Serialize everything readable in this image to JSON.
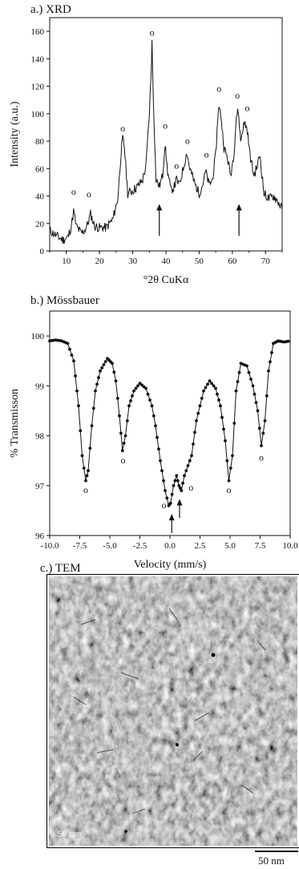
{
  "panels": {
    "xrd_label": "a.) XRD",
    "moss_label": "b.) Mössbauer",
    "tem_label": "c.) TEM"
  },
  "colors": {
    "line": "#111111",
    "background": "#ffffff"
  },
  "chart_data": [
    {
      "type": "line",
      "title": "a.) XRD",
      "xlabel": "°2θ CuKα",
      "ylabel": "Intensity (a.u.)",
      "xlim": [
        5,
        75
      ],
      "ylim": [
        0,
        170
      ],
      "xticks": [
        10,
        20,
        30,
        40,
        50,
        60,
        70
      ],
      "yticks": [
        0,
        20,
        40,
        60,
        80,
        100,
        120,
        140,
        160
      ],
      "grid": false,
      "series": [
        {
          "x": [
            5,
            7,
            9,
            10.5,
            11.5,
            12.2,
            13,
            14.5,
            15.5,
            16.5,
            17.3,
            18.5,
            20,
            22,
            24,
            25.5,
            26.5,
            27,
            27.5,
            28.5,
            30,
            31.5,
            33,
            34,
            35,
            35.5,
            35.8,
            36.2,
            37,
            38,
            39,
            39.7,
            40.5,
            41.5,
            42.5,
            43.2,
            44,
            45,
            46.3,
            47,
            48.5,
            50,
            51,
            52,
            53,
            54,
            55,
            55.8,
            56.5,
            57.5,
            58.5,
            59.5,
            60.5,
            61.2,
            61.8,
            62.5,
            63.2,
            63.8,
            64.5,
            65.3,
            66.5,
            67.5,
            68.3,
            69.5,
            71,
            72.5,
            74,
            75
          ],
          "y": [
            15,
            11,
            8,
            10,
            18,
            29,
            18,
            13,
            15,
            20,
            27,
            18,
            17,
            17,
            23,
            38,
            72,
            82,
            76,
            42,
            44,
            47,
            52,
            62,
            100,
            128,
            152,
            112,
            52,
            47,
            55,
            78,
            58,
            44,
            47,
            52,
            48,
            58,
            72,
            62,
            50,
            42,
            48,
            58,
            48,
            52,
            70,
            105,
            100,
            75,
            68,
            55,
            72,
            98,
            102,
            80,
            90,
            93,
            88,
            70,
            55,
            62,
            70,
            42,
            38,
            40,
            35,
            30
          ]
        }
      ],
      "annotations": [
        {
          "marker": "o",
          "x": 12.2,
          "y": 41
        },
        {
          "marker": "o",
          "x": 16.8,
          "y": 39
        },
        {
          "marker": "o",
          "x": 27,
          "y": 87
        },
        {
          "marker": "o",
          "x": 35.8,
          "y": 157
        },
        {
          "marker": "o",
          "x": 39.8,
          "y": 89
        },
        {
          "marker": "o",
          "x": 43.2,
          "y": 60
        },
        {
          "marker": "o",
          "x": 46.5,
          "y": 78
        },
        {
          "marker": "o",
          "x": 52.2,
          "y": 68
        },
        {
          "marker": "o",
          "x": 56,
          "y": 116
        },
        {
          "marker": "o",
          "x": 61.5,
          "y": 111
        },
        {
          "marker": "o",
          "x": 64.5,
          "y": 102
        }
      ],
      "arrows": [
        {
          "x": 38,
          "y_from": 11,
          "y_to": 33
        },
        {
          "x": 62,
          "y_from": 11,
          "y_to": 33
        }
      ]
    },
    {
      "type": "scatter",
      "title": "b.) Mössbauer",
      "xlabel": "Velocity (mm/s)",
      "ylabel": "% Transmisson",
      "xlim": [
        -10,
        10
      ],
      "ylim": [
        96,
        100.5
      ],
      "xticks": [
        "-10.0",
        "-7.5",
        "-5.0",
        "-2.5",
        "0.0",
        "2.5",
        "5.0",
        "7.5",
        "10.0"
      ],
      "yticks": [
        96,
        97,
        98,
        99,
        100
      ],
      "grid": false,
      "series": [
        {
          "x": [
            -10,
            -9.5,
            -9,
            -8.5,
            -8,
            -7.6,
            -7.3,
            -7.0,
            -6.8,
            -6.5,
            -6.2,
            -5.8,
            -5.2,
            -4.8,
            -4.5,
            -4.2,
            -3.95,
            -3.7,
            -3.4,
            -3.0,
            -2.5,
            -2.0,
            -1.5,
            -1.2,
            -0.8,
            -0.4,
            -0.1,
            0.05,
            0.3,
            0.55,
            0.75,
            0.95,
            1.2,
            1.5,
            1.8,
            2.2,
            2.8,
            3.3,
            3.8,
            4.2,
            4.6,
            4.9,
            5.2,
            5.5,
            5.9,
            6.4,
            6.9,
            7.3,
            7.6,
            7.9,
            8.2,
            8.6,
            9.0,
            9.5,
            10
          ],
          "y": [
            99.9,
            99.92,
            99.9,
            99.85,
            99.5,
            98.6,
            97.6,
            97.1,
            97.3,
            98.2,
            98.9,
            99.3,
            99.55,
            99.45,
            99.1,
            98.4,
            97.7,
            98.0,
            98.6,
            98.9,
            99.05,
            98.95,
            98.6,
            98.2,
            97.5,
            96.9,
            96.6,
            96.65,
            97.0,
            97.2,
            97.0,
            96.9,
            97.2,
            97.4,
            97.6,
            98.3,
            98.9,
            99.1,
            98.95,
            98.6,
            97.9,
            97.1,
            97.6,
            98.9,
            99.45,
            99.4,
            99.0,
            98.5,
            97.8,
            98.3,
            99.3,
            99.85,
            99.9,
            99.88,
            99.9
          ]
        }
      ],
      "annotations": [
        {
          "marker": "o",
          "x": -7.0,
          "y": 96.85
        },
        {
          "marker": "o",
          "x": -3.9,
          "y": 97.45
        },
        {
          "marker": "o",
          "x": -0.5,
          "y": 96.55
        },
        {
          "marker": "o",
          "x": 1.75,
          "y": 96.9
        },
        {
          "marker": "o",
          "x": 4.9,
          "y": 96.85
        },
        {
          "marker": "o",
          "x": 7.6,
          "y": 97.5
        }
      ],
      "arrows": [
        {
          "x": 0.15,
          "y_from": 96.05,
          "y_to": 96.4
        },
        {
          "x": 0.8,
          "y_from": 96.35,
          "y_to": 96.7
        }
      ]
    }
  ],
  "tem": {
    "inner_scale_label": "50 nm",
    "scale_bar_label": "50 nm"
  }
}
